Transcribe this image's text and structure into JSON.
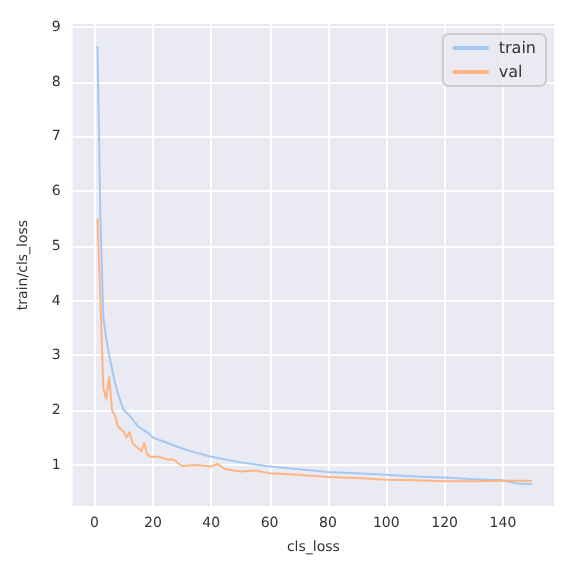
{
  "chart_data": {
    "type": "line",
    "xlabel": "cls_loss",
    "ylabel": "train/cls_loss",
    "xlim": [
      -7.5,
      157.5
    ],
    "ylim": [
      0.25,
      9.05
    ],
    "xticks": [
      0,
      20,
      40,
      60,
      80,
      100,
      120,
      140
    ],
    "yticks": [
      1,
      2,
      3,
      4,
      5,
      6,
      7,
      8,
      9
    ],
    "grid": true,
    "legend": "top right",
    "marker": "none",
    "line_style": "solid",
    "series": [
      {
        "name": "train",
        "color": "#a1c9f4",
        "x": [
          1,
          2,
          3,
          4,
          5,
          6,
          7,
          8,
          10,
          12,
          15,
          18,
          20,
          25,
          30,
          35,
          40,
          45,
          50,
          60,
          70,
          80,
          90,
          100,
          110,
          120,
          130,
          140,
          145,
          150
        ],
        "values": [
          8.65,
          5.5,
          3.7,
          3.3,
          3.0,
          2.75,
          2.5,
          2.3,
          2.0,
          1.9,
          1.7,
          1.6,
          1.5,
          1.4,
          1.3,
          1.22,
          1.15,
          1.1,
          1.05,
          0.97,
          0.92,
          0.87,
          0.85,
          0.82,
          0.79,
          0.77,
          0.74,
          0.72,
          0.66,
          0.65
        ]
      },
      {
        "name": "val",
        "color": "#ffb482",
        "x": [
          1,
          2,
          3,
          4,
          5,
          6,
          7,
          8,
          9,
          10,
          11,
          12,
          13,
          15,
          16,
          17,
          18,
          19,
          22,
          25,
          27,
          30,
          35,
          40,
          42,
          45,
          50,
          55,
          60,
          70,
          80,
          90,
          100,
          110,
          120,
          130,
          140,
          150
        ],
        "values": [
          5.5,
          4.0,
          2.4,
          2.2,
          2.6,
          2.0,
          1.9,
          1.7,
          1.65,
          1.6,
          1.5,
          1.6,
          1.4,
          1.3,
          1.25,
          1.4,
          1.2,
          1.15,
          1.15,
          1.1,
          1.1,
          0.98,
          1.0,
          0.97,
          1.02,
          0.92,
          0.88,
          0.9,
          0.85,
          0.82,
          0.78,
          0.76,
          0.73,
          0.72,
          0.7,
          0.7,
          0.71,
          0.71
        ]
      }
    ]
  }
}
